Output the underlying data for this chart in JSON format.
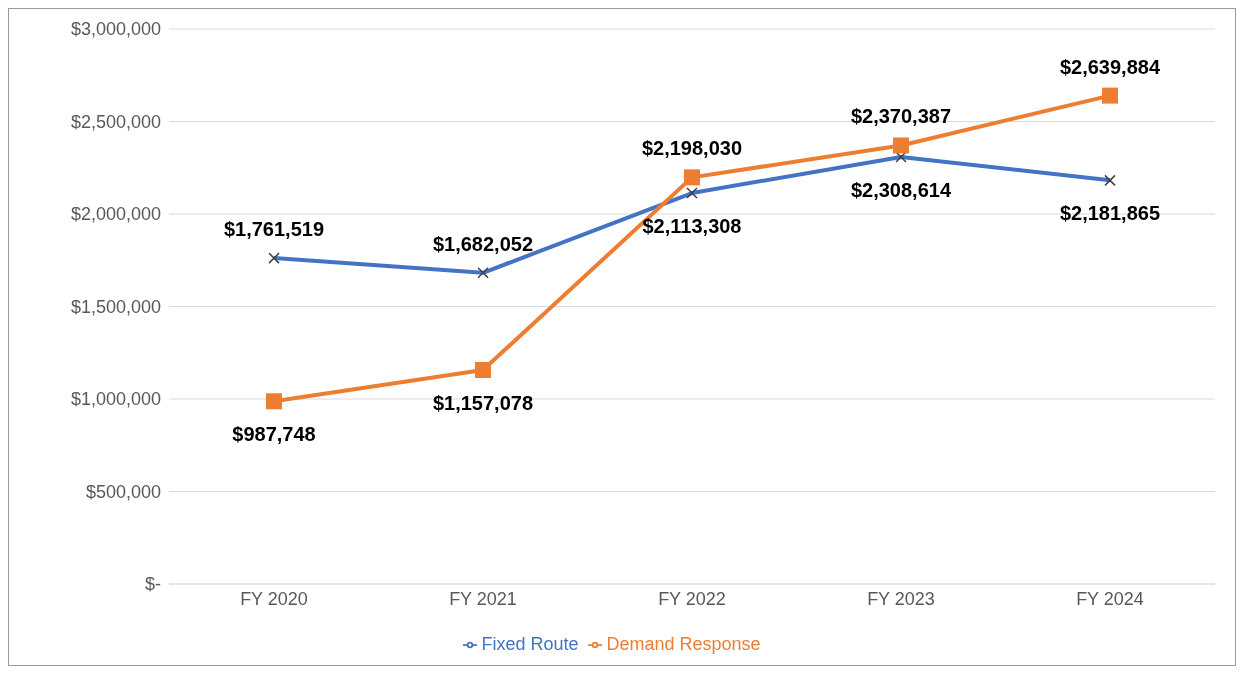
{
  "chart_data": {
    "type": "line",
    "categories": [
      "FY 2020",
      "FY 2021",
      "FY 2022",
      "FY 2023",
      "FY 2024"
    ],
    "series": [
      {
        "name": "Fixed Route",
        "color": "#4472c4",
        "marker": "cross",
        "values": [
          1761519,
          1682052,
          2113308,
          2308614,
          2181865
        ],
        "value_labels": [
          "$1,761,519",
          "$1,682,052",
          "$2,113,308",
          "$2,308,614",
          "$2,181,865"
        ]
      },
      {
        "name": "Demand Response",
        "color": "#ed7d31",
        "marker": "square",
        "values": [
          987748,
          1157078,
          2198030,
          2370387,
          2639884
        ],
        "value_labels": [
          "$987,748",
          "$1,157,078",
          "$2,198,030",
          "$2,370,387",
          "$2,639,884"
        ]
      }
    ],
    "ylim": [
      0,
      3000000
    ],
    "yticks": [
      {
        "value": 0,
        "label": "$-"
      },
      {
        "value": 500000,
        "label": "$500,000"
      },
      {
        "value": 1000000,
        "label": "$1,000,000"
      },
      {
        "value": 1500000,
        "label": "$1,500,000"
      },
      {
        "value": 2000000,
        "label": "$2,000,000"
      },
      {
        "value": 2500000,
        "label": "$2,500,000"
      },
      {
        "value": 3000000,
        "label": "$3,000,000"
      }
    ],
    "grid": "y",
    "legend": "bottom",
    "line_style": "solid"
  }
}
